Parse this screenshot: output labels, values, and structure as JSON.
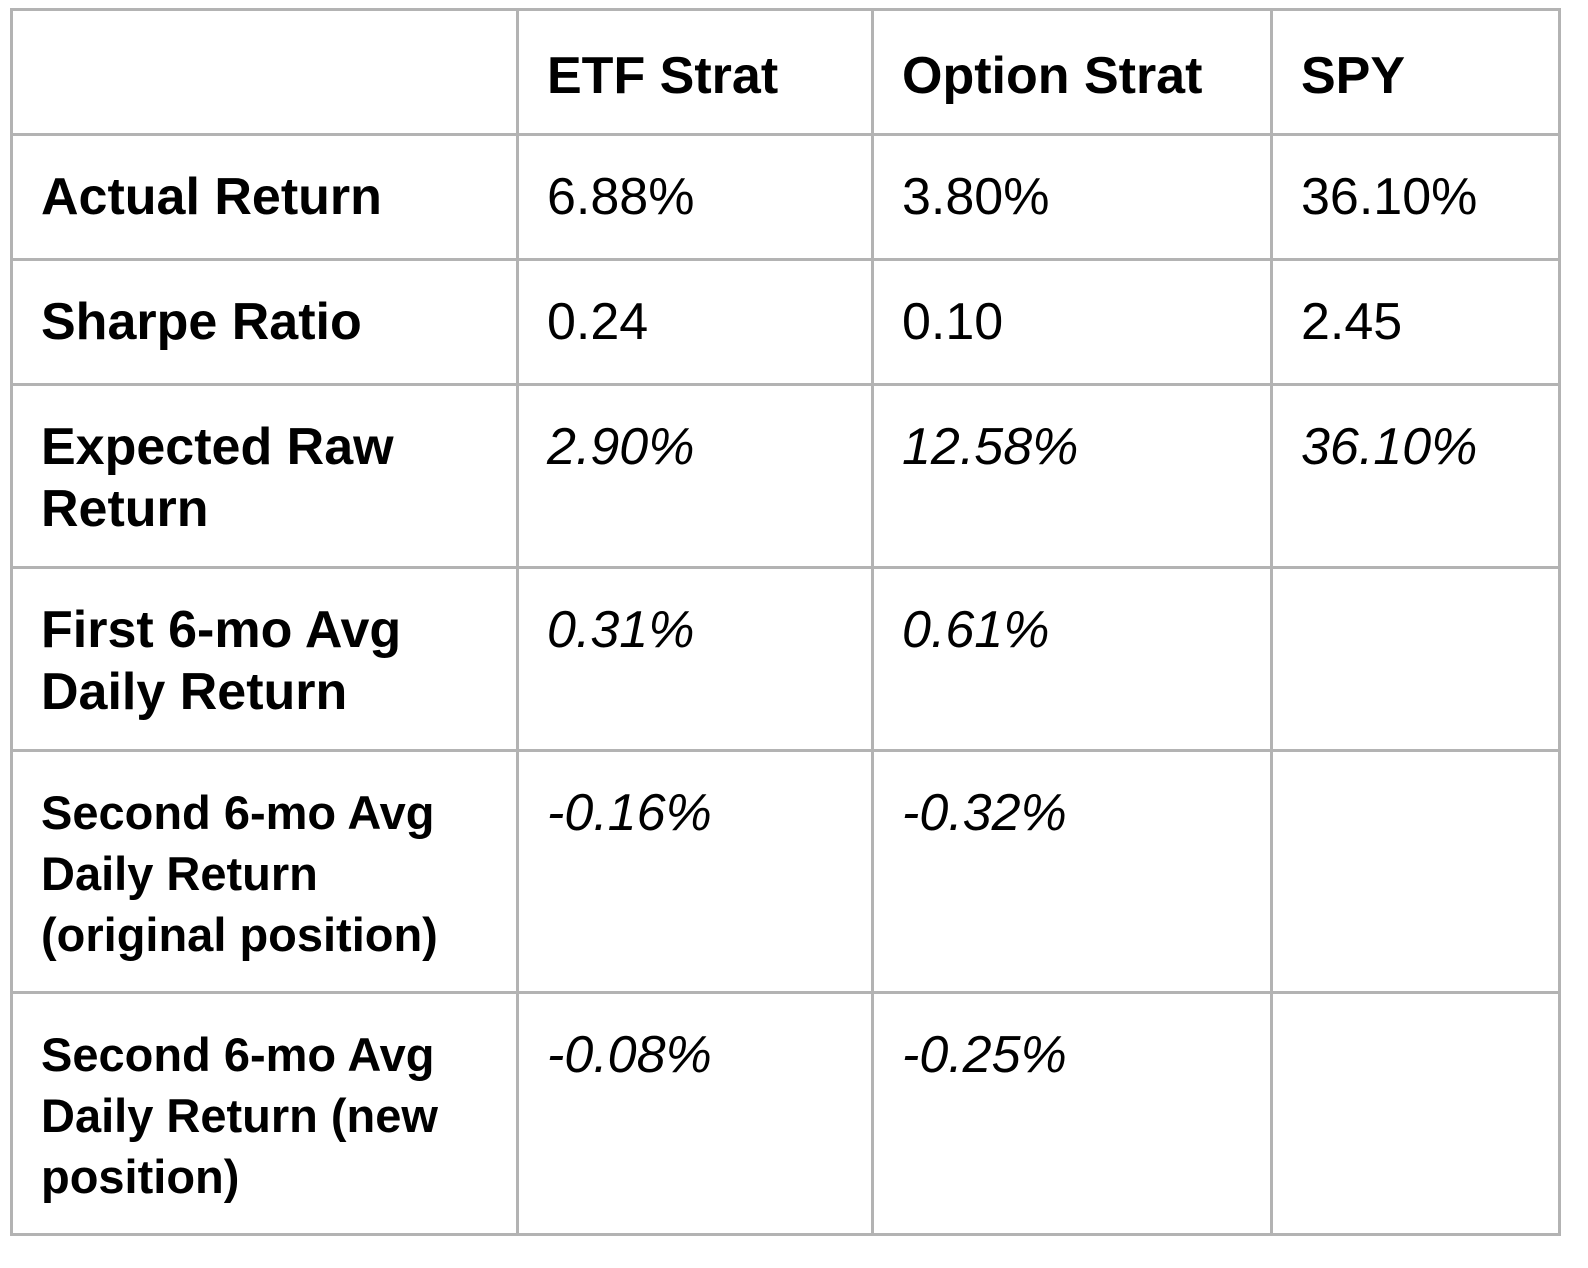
{
  "table": {
    "columns": [
      "",
      "ETF Strat",
      "Option Strat",
      "SPY"
    ],
    "rows": [
      {
        "label": "Actual Return",
        "values": [
          "6.88%",
          "3.80%",
          "36.10%"
        ],
        "style": "normal"
      },
      {
        "label": "Sharpe Ratio",
        "values": [
          "0.24",
          "0.10",
          "2.45"
        ],
        "style": "normal"
      },
      {
        "label": "Expected Raw Return",
        "values": [
          "2.90%",
          "12.58%",
          "36.10%"
        ],
        "style": "italic"
      },
      {
        "label": "First 6-mo Avg Daily Return",
        "values": [
          "0.31%",
          "0.61%",
          ""
        ],
        "style": "italic"
      },
      {
        "label": "Second 6-mo Avg Daily Return (original position)",
        "values": [
          "-0.16%",
          "-0.32%",
          ""
        ],
        "style": "italic"
      },
      {
        "label": "Second 6-mo Avg Daily Return (new position)",
        "values": [
          "-0.08%",
          "-0.25%",
          ""
        ],
        "style": "italic"
      }
    ]
  },
  "colors": {
    "border": "#b3b3b3",
    "text": "#000000",
    "background": "#ffffff"
  }
}
